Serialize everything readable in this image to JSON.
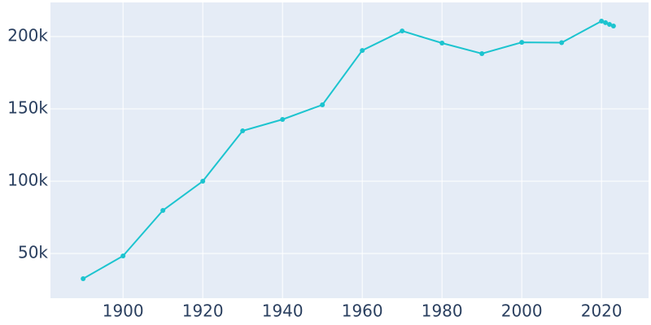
{
  "chart_data": {
    "type": "line",
    "x": [
      1890,
      1900,
      1910,
      1920,
      1930,
      1940,
      1950,
      1960,
      1970,
      1980,
      1990,
      2000,
      2010,
      2020,
      2021,
      2022,
      2023
    ],
    "series": [
      {
        "color": "#1cc4cf",
        "values": [
          32600,
          48300,
          79800,
          100000,
          134800,
          142700,
          152800,
          190400,
          203900,
          195500,
          188200,
          196000,
          195800,
          210700,
          209600,
          208400,
          207300
        ]
      }
    ],
    "xlim": [
      1881.8,
      2031.8
    ],
    "xticks": [
      1900,
      1920,
      1940,
      1960,
      1980,
      2000,
      2020
    ],
    "ylim": [
      19100,
      223600
    ],
    "yticks": [
      {
        "value": 50000,
        "label": "50k"
      },
      {
        "value": 100000,
        "label": "100k"
      },
      {
        "value": 150000,
        "label": "150k"
      },
      {
        "value": 200000,
        "label": "200k"
      }
    ],
    "grid": true,
    "markers": true
  }
}
